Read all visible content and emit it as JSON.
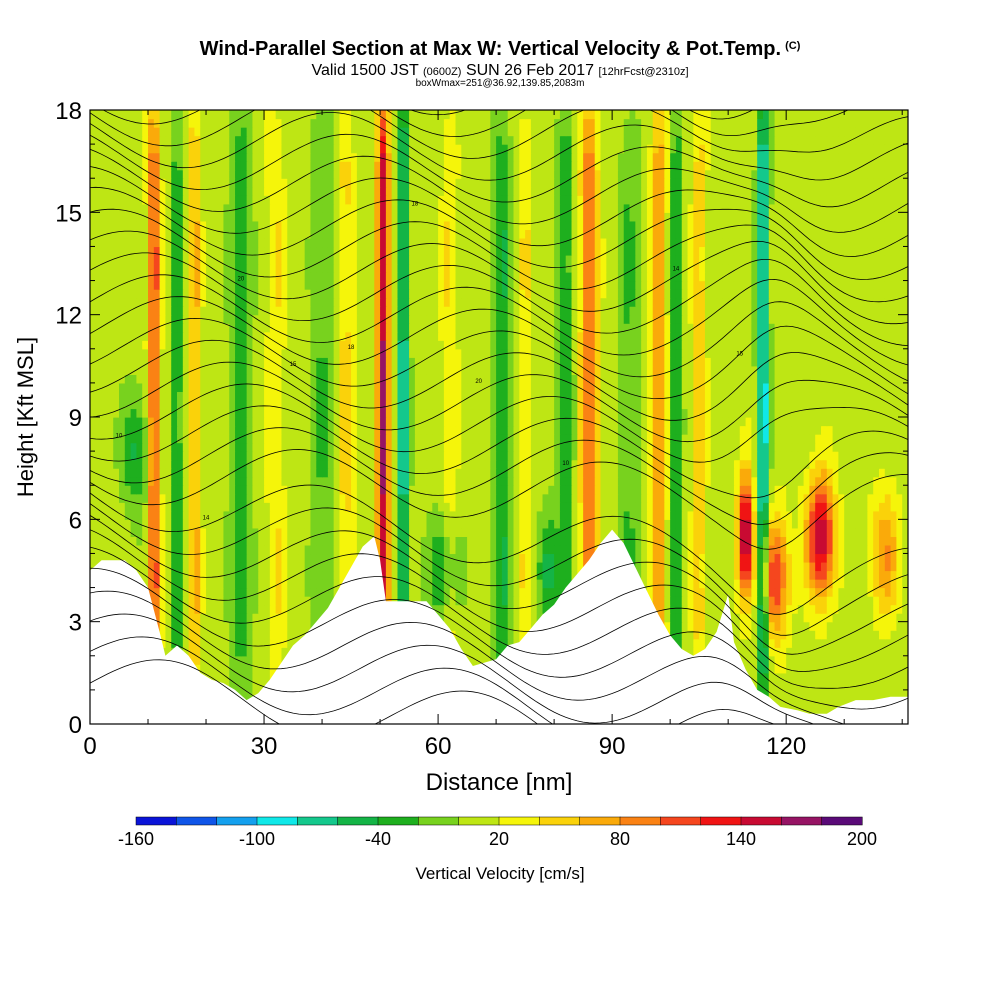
{
  "header": {
    "title": "Wind-Parallel Section at Max W: Vertical Velocity & Pot.Temp.",
    "copyright": "(C)",
    "subtitle_a": "Valid 1500 JST",
    "subtitle_b": "(0600Z)",
    "subtitle_c": "SUN 26 Feb 2017",
    "subtitle_d": "[12hrFcst@2310z]",
    "note": "boxWmax=251@36.92,139.85,2083m"
  },
  "chart_data": {
    "type": "heatmap",
    "xlabel": "Distance [nm]",
    "ylabel": "Height [Kft MSL]",
    "xlim": [
      0,
      141
    ],
    "ylim": [
      0,
      18
    ],
    "xticks": [
      0,
      30,
      60,
      90,
      120
    ],
    "yticks": [
      0,
      3,
      6,
      9,
      12,
      15,
      18
    ],
    "colorbar": {
      "label": "Vertical Velocity [cm/s]",
      "tick_labels": [
        "-160",
        "-100",
        "-40",
        "20",
        "80",
        "140",
        "200"
      ],
      "tick_values": [
        -160,
        -100,
        -40,
        20,
        80,
        140,
        200
      ],
      "range": [
        -160,
        200
      ],
      "colors": [
        "#0a14d8",
        "#0f55e8",
        "#14a0ee",
        "#10e8e8",
        "#14c88c",
        "#14b446",
        "#1eaf1e",
        "#78d21e",
        "#bee614",
        "#f5f50a",
        "#fad20a",
        "#faaa0a",
        "#fa8214",
        "#f5461e",
        "#f01414",
        "#c80a32",
        "#961464",
        "#5a0a78"
      ]
    },
    "terrain_kft": [
      [
        0,
        4.5
      ],
      [
        2,
        4.8
      ],
      [
        6,
        4.8
      ],
      [
        8,
        4.5
      ],
      [
        10,
        4.0
      ],
      [
        12,
        2.7
      ],
      [
        13,
        2.0
      ],
      [
        15,
        2.3
      ],
      [
        17,
        2.0
      ],
      [
        19,
        1.5
      ],
      [
        21,
        1.3
      ],
      [
        23,
        1.2
      ],
      [
        25,
        1.0
      ],
      [
        27,
        0.7
      ],
      [
        29,
        0.9
      ],
      [
        31,
        1.3
      ],
      [
        33,
        1.8
      ],
      [
        35,
        2.3
      ],
      [
        37,
        2.6
      ],
      [
        39,
        3.0
      ],
      [
        41,
        3.4
      ],
      [
        43,
        4.0
      ],
      [
        45,
        4.6
      ],
      [
        47,
        5.2
      ],
      [
        49,
        5.5
      ],
      [
        50,
        4.8
      ],
      [
        51,
        3.6
      ],
      [
        54,
        3.6
      ],
      [
        58,
        3.6
      ],
      [
        60,
        3.2
      ],
      [
        62,
        2.8
      ],
      [
        64,
        2.2
      ],
      [
        66,
        1.7
      ],
      [
        68,
        1.8
      ],
      [
        70,
        1.9
      ],
      [
        72,
        2.3
      ],
      [
        74,
        2.4
      ],
      [
        76,
        2.8
      ],
      [
        78,
        3.2
      ],
      [
        80,
        3.5
      ],
      [
        82,
        4.0
      ],
      [
        84,
        4.4
      ],
      [
        86,
        4.8
      ],
      [
        88,
        5.3
      ],
      [
        90,
        5.7
      ],
      [
        92,
        5.3
      ],
      [
        94,
        4.6
      ],
      [
        96,
        3.9
      ],
      [
        98,
        3.2
      ],
      [
        100,
        2.6
      ],
      [
        102,
        2.2
      ],
      [
        104,
        2.0
      ],
      [
        106,
        2.2
      ],
      [
        108,
        2.7
      ],
      [
        110,
        3.8
      ],
      [
        111,
        2.4
      ],
      [
        113,
        1.6
      ],
      [
        115,
        1.0
      ],
      [
        117,
        0.8
      ],
      [
        119,
        0.5
      ],
      [
        122,
        0.4
      ],
      [
        124,
        0.3
      ],
      [
        127,
        0.3
      ],
      [
        129,
        0.5
      ],
      [
        132,
        0.7
      ],
      [
        135,
        0.7
      ],
      [
        138,
        0.8
      ],
      [
        141,
        0.8
      ]
    ],
    "updrafts": [
      [
        11,
        9.5,
        1.0,
        110
      ],
      [
        50.5,
        9.5,
        1.0,
        150
      ],
      [
        18,
        9.5,
        1.0,
        60
      ],
      [
        86,
        9.5,
        1.5,
        90
      ],
      [
        98,
        9.5,
        1.3,
        70
      ],
      [
        105,
        9.5,
        1.2,
        40
      ],
      [
        32,
        9.5,
        1.5,
        30
      ],
      [
        44,
        9.5,
        1.5,
        35
      ],
      [
        75,
        9.5,
        1.3,
        30
      ],
      [
        113,
        5.5,
        1.3,
        170
      ],
      [
        126,
        5.5,
        2.4,
        150
      ],
      [
        118,
        4.3,
        2.5,
        110
      ],
      [
        137,
        5.0,
        2.5,
        70
      ],
      [
        62,
        9.5,
        1.4,
        30
      ]
    ],
    "downdrafts": [
      [
        8,
        8.0,
        2.5,
        -55
      ],
      [
        15,
        9.5,
        1.0,
        -45
      ],
      [
        54,
        9.5,
        1.0,
        -90
      ],
      [
        71,
        9.5,
        1.6,
        -50
      ],
      [
        82,
        9.5,
        1.5,
        -40
      ],
      [
        93,
        9.5,
        1.8,
        -30
      ],
      [
        116,
        9.5,
        1.0,
        -110
      ],
      [
        101,
        9.5,
        1.0,
        -50
      ],
      [
        26,
        9.5,
        2.0,
        -40
      ],
      [
        40,
        9.5,
        2.0,
        -30
      ],
      [
        61,
        4.5,
        2.5,
        -60
      ],
      [
        79,
        4.5,
        2.0,
        -50
      ]
    ],
    "isentrope_labels": [
      "10",
      "14",
      "15",
      "18",
      "20"
    ]
  }
}
